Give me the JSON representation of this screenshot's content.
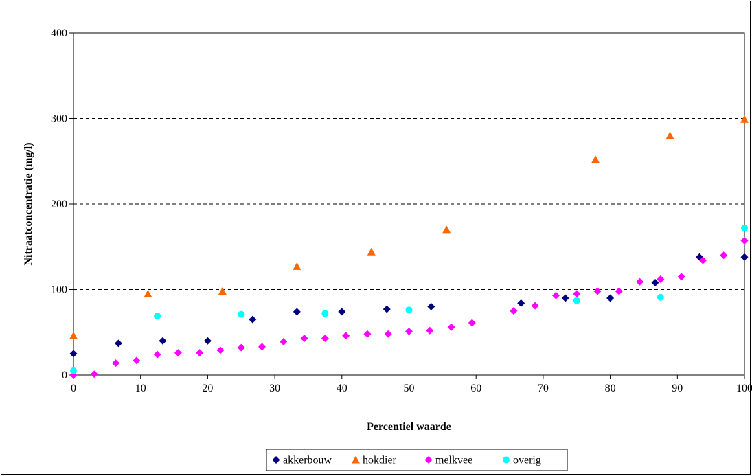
{
  "chart_data": {
    "type": "scatter",
    "xlabel": "Percentiel waarde",
    "ylabel": "Nitraatconcentratie (mg/l)",
    "xlim": [
      0,
      100
    ],
    "ylim": [
      0,
      400
    ],
    "xticks": [
      0,
      10,
      20,
      30,
      40,
      50,
      60,
      70,
      80,
      90,
      100
    ],
    "yticks": [
      0,
      100,
      200,
      300,
      400
    ],
    "grid": "horizontal-dashed",
    "legend_position": "bottom",
    "series": [
      {
        "name": "akkerbouw",
        "marker": "diamond",
        "color": "#000080",
        "points": [
          [
            0,
            25
          ],
          [
            6.7,
            37
          ],
          [
            13.3,
            40
          ],
          [
            20,
            40
          ],
          [
            26.7,
            65
          ],
          [
            33.3,
            74
          ],
          [
            40,
            74
          ],
          [
            46.7,
            77
          ],
          [
            53.3,
            80
          ],
          [
            66.7,
            84
          ],
          [
            73.3,
            90
          ],
          [
            80,
            90
          ],
          [
            86.7,
            108
          ],
          [
            93.3,
            138
          ],
          [
            100,
            138
          ]
        ]
      },
      {
        "name": "hokdier",
        "marker": "triangle",
        "color": "#FF6600",
        "points": [
          [
            0,
            46
          ],
          [
            11.1,
            95
          ],
          [
            22.2,
            98
          ],
          [
            33.3,
            127
          ],
          [
            44.4,
            144
          ],
          [
            55.6,
            170
          ],
          [
            77.8,
            252
          ],
          [
            88.9,
            280
          ],
          [
            100,
            299
          ]
        ]
      },
      {
        "name": "melkvee",
        "marker": "diamond",
        "color": "#FF00FF",
        "points": [
          [
            0,
            0
          ],
          [
            3.1,
            1
          ],
          [
            6.3,
            14
          ],
          [
            9.4,
            17
          ],
          [
            12.5,
            24
          ],
          [
            15.6,
            26
          ],
          [
            18.8,
            26
          ],
          [
            21.9,
            29
          ],
          [
            25,
            32
          ],
          [
            28.1,
            33
          ],
          [
            31.3,
            39
          ],
          [
            34.4,
            43
          ],
          [
            37.5,
            43
          ],
          [
            40.6,
            46
          ],
          [
            43.8,
            48
          ],
          [
            46.9,
            48
          ],
          [
            50,
            51
          ],
          [
            53.1,
            52
          ],
          [
            56.3,
            56
          ],
          [
            59.4,
            61
          ],
          [
            65.6,
            75
          ],
          [
            68.8,
            81
          ],
          [
            71.9,
            93
          ],
          [
            75,
            95
          ],
          [
            78.1,
            98
          ],
          [
            81.3,
            98
          ],
          [
            84.4,
            109
          ],
          [
            87.5,
            112
          ],
          [
            90.6,
            115
          ],
          [
            93.8,
            134
          ],
          [
            96.9,
            140
          ],
          [
            100,
            157
          ]
        ]
      },
      {
        "name": "overig",
        "marker": "circle",
        "color": "#00FFFF",
        "points": [
          [
            0,
            5
          ],
          [
            12.5,
            69
          ],
          [
            25,
            71
          ],
          [
            37.5,
            72
          ],
          [
            50,
            76
          ],
          [
            75,
            87
          ],
          [
            87.5,
            91
          ],
          [
            100,
            172
          ]
        ]
      }
    ]
  }
}
